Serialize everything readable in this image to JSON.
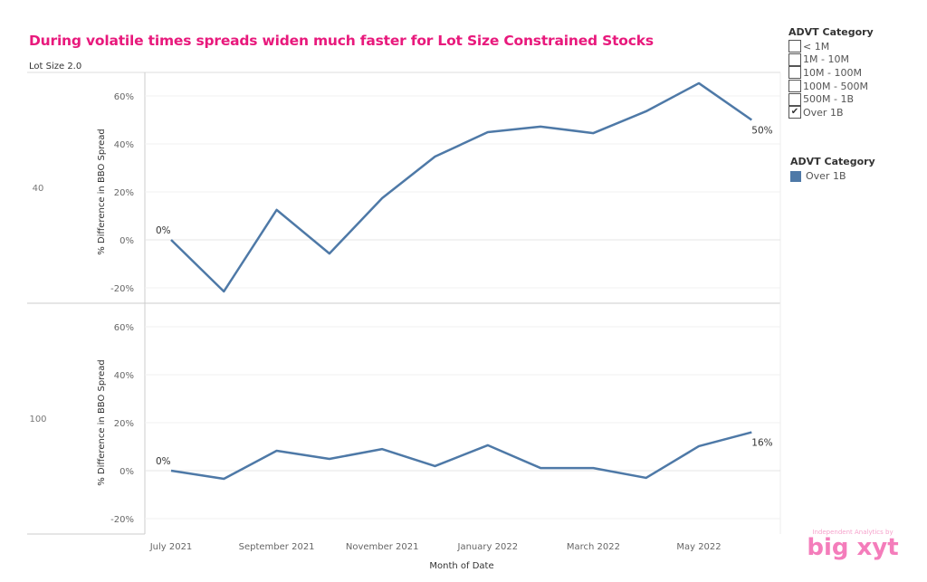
{
  "title": "During volatile times spreads widen much faster for Lot Size Constrained Stocks",
  "filter_legend": {
    "title": "ADVT Category",
    "items": [
      {
        "label": "< 1M",
        "checked": false
      },
      {
        "label": "1M - 10M",
        "checked": false
      },
      {
        "label": "10M - 100M",
        "checked": false
      },
      {
        "label": "100M - 500M",
        "checked": false
      },
      {
        "label": "500M - 1B",
        "checked": false
      },
      {
        "label": "Over 1B",
        "checked": true
      }
    ],
    "check_mark": "✔"
  },
  "color_legend": {
    "title": "ADVT Category",
    "items": [
      {
        "label": "Over 1B",
        "color": "#4e79a7"
      }
    ]
  },
  "brand": {
    "tagline": "Independent Analytics by",
    "name": "big xyt"
  },
  "chart_data": {
    "type": "line",
    "title": "During volatile times spreads widen much faster for Lot Size Constrained Stocks",
    "row_header": "Lot Size 2.0",
    "xlabel": "Month of Date",
    "ylabel": "% Difference in BBO Spread",
    "x": [
      "Jul 2021",
      "Aug 2021",
      "Sep 2021",
      "Oct 2021",
      "Nov 2021",
      "Dec 2021",
      "Jan 2022",
      "Feb 2022",
      "Mar 2022",
      "Apr 2022",
      "May 2022",
      "Jun 2022"
    ],
    "x_tick_labels": [
      {
        "index": 0,
        "label": "July 2021"
      },
      {
        "index": 2,
        "label": "September 2021"
      },
      {
        "index": 4,
        "label": "November 2021"
      },
      {
        "index": 6,
        "label": "January 2022"
      },
      {
        "index": 8,
        "label": "March 2022"
      },
      {
        "index": 10,
        "label": "May 2022"
      }
    ],
    "ylim": [
      -25,
      70
    ],
    "y_ticks": [
      -20,
      0,
      20,
      40,
      60
    ],
    "y_tick_labels": [
      "-20%",
      "0%",
      "20%",
      "40%",
      "60%"
    ],
    "grid": true,
    "color": "#4e79a7",
    "panels": [
      {
        "row_label": "40",
        "series": [
          {
            "name": "Over 1B",
            "values": [
              0,
              -21.5,
              12.5,
              -5.7,
              17.4,
              34.7,
              44.9,
              47.2,
              44.5,
              53.6,
              65.3,
              50
            ]
          }
        ],
        "labels": [
          {
            "index": 0,
            "text": "0%"
          },
          {
            "index": 11,
            "text": "50%"
          }
        ]
      },
      {
        "row_label": "100",
        "series": [
          {
            "name": "Over 1B",
            "values": [
              0,
              -3.4,
              8.3,
              4.9,
              9,
              1.9,
              10.6,
              1.1,
              1.1,
              -3,
              10.2,
              16
            ]
          }
        ],
        "labels": [
          {
            "index": 0,
            "text": "0%"
          },
          {
            "index": 11,
            "text": "16%"
          }
        ]
      }
    ]
  }
}
